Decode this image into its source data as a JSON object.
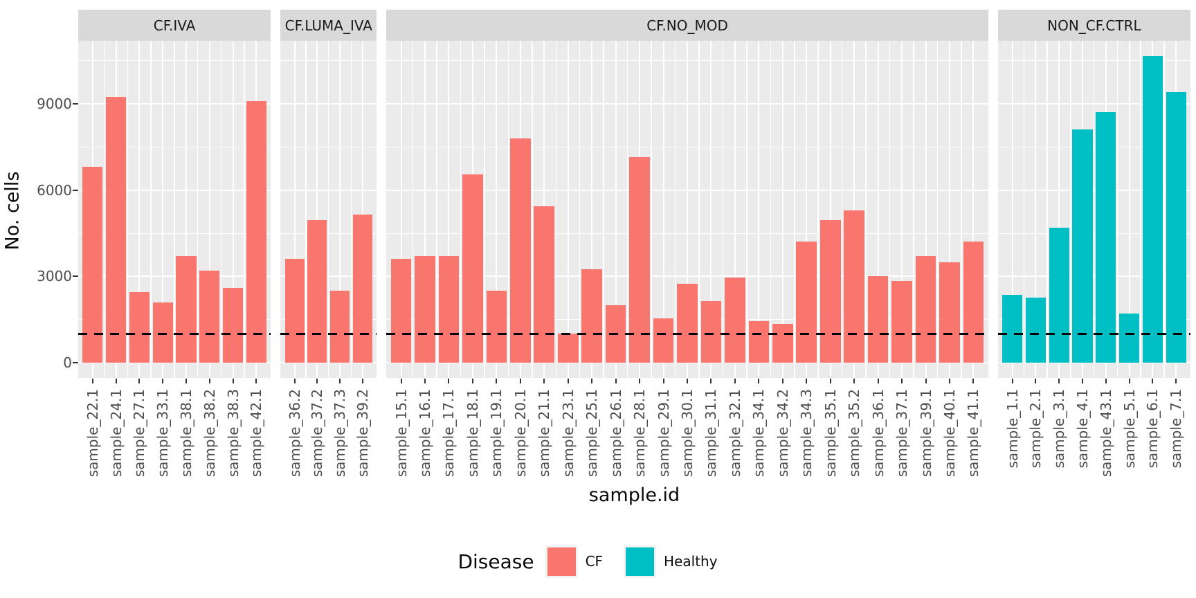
{
  "y_axis": {
    "title": "No. cells"
  },
  "x_axis": {
    "title": "sample.id"
  },
  "legend": {
    "title": "Disease",
    "items": [
      {
        "label": "CF",
        "color": "#F8766D"
      },
      {
        "label": "Healthy",
        "color": "#00BFC4"
      }
    ]
  },
  "colors": {
    "panel_bg": "#EBEBEB",
    "strip_bg": "#D9D9D9",
    "gridline": "#FFFFFF",
    "axis_text": "#4D4D4D",
    "title_text": "#0A0A0A",
    "tick_mark": "#333333",
    "threshold_line": "#000000"
  },
  "chart_data": {
    "type": "bar",
    "title": "",
    "xlabel": "sample.id",
    "ylabel": "No. cells",
    "yticks": [
      0,
      3000,
      6000,
      9000
    ],
    "yticks_minor": [
      1500,
      4500,
      7500,
      10500
    ],
    "ylim": [
      0,
      11182
    ],
    "grid": true,
    "legend_position": "bottom",
    "hline": {
      "value": 1000,
      "style": "dashed",
      "color": "#000000"
    },
    "facets": [
      {
        "label": "CF.IVA",
        "group": "CF",
        "samples": [
          {
            "id": "sample_22.1",
            "value": 6800
          },
          {
            "id": "sample_24.1",
            "value": 9250
          },
          {
            "id": "sample_27.1",
            "value": 2450
          },
          {
            "id": "sample_33.1",
            "value": 2100
          },
          {
            "id": "sample_38.1",
            "value": 3700
          },
          {
            "id": "sample_38.2",
            "value": 3200
          },
          {
            "id": "sample_38.3",
            "value": 2600
          },
          {
            "id": "sample_42.1",
            "value": 9100
          }
        ]
      },
      {
        "label": "CF.LUMA_IVA",
        "group": "CF",
        "samples": [
          {
            "id": "sample_36.2",
            "value": 3600
          },
          {
            "id": "sample_37.2",
            "value": 4950
          },
          {
            "id": "sample_37.3",
            "value": 2500
          },
          {
            "id": "sample_39.2",
            "value": 5150
          }
        ]
      },
      {
        "label": "CF.NO_MOD",
        "group": "CF",
        "samples": [
          {
            "id": "sample_15.1",
            "value": 3600
          },
          {
            "id": "sample_16.1",
            "value": 3700
          },
          {
            "id": "sample_17.1",
            "value": 3700
          },
          {
            "id": "sample_18.1",
            "value": 6550
          },
          {
            "id": "sample_19.1",
            "value": 2500
          },
          {
            "id": "sample_20.1",
            "value": 7800
          },
          {
            "id": "sample_21.1",
            "value": 5450
          },
          {
            "id": "sample_23.1",
            "value": 1000
          },
          {
            "id": "sample_25.1",
            "value": 3250
          },
          {
            "id": "sample_26.1",
            "value": 2000
          },
          {
            "id": "sample_28.1",
            "value": 7150
          },
          {
            "id": "sample_29.1",
            "value": 1550
          },
          {
            "id": "sample_30.1",
            "value": 2750
          },
          {
            "id": "sample_31.1",
            "value": 2150
          },
          {
            "id": "sample_32.1",
            "value": 2950
          },
          {
            "id": "sample_34.1",
            "value": 1450
          },
          {
            "id": "sample_34.2",
            "value": 1350
          },
          {
            "id": "sample_34.3",
            "value": 4200
          },
          {
            "id": "sample_35.1",
            "value": 4950
          },
          {
            "id": "sample_35.2",
            "value": 5300
          },
          {
            "id": "sample_36.1",
            "value": 3000
          },
          {
            "id": "sample_37.1",
            "value": 2850
          },
          {
            "id": "sample_39.1",
            "value": 3700
          },
          {
            "id": "sample_40.1",
            "value": 3500
          },
          {
            "id": "sample_41.1",
            "value": 4200
          }
        ]
      },
      {
        "label": "NON_CF.CTRL",
        "group": "Healthy",
        "samples": [
          {
            "id": "sample_1.1",
            "value": 2350
          },
          {
            "id": "sample_2.1",
            "value": 2250
          },
          {
            "id": "sample_3.1",
            "value": 4700
          },
          {
            "id": "sample_4.1",
            "value": 8100
          },
          {
            "id": "sample_43.1",
            "value": 8700
          },
          {
            "id": "sample_5.1",
            "value": 1700
          },
          {
            "id": "sample_6.1",
            "value": 10650
          },
          {
            "id": "sample_7.1",
            "value": 9400
          }
        ]
      }
    ]
  }
}
